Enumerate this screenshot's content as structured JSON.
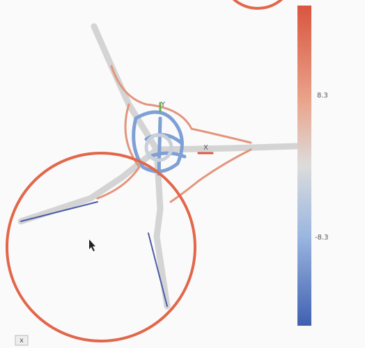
{
  "viewer": {
    "axes": {
      "y": "Y",
      "x": "X"
    },
    "colorbar": {
      "ticks": [
        "8.3",
        "-8.3"
      ]
    },
    "close": "x"
  }
}
